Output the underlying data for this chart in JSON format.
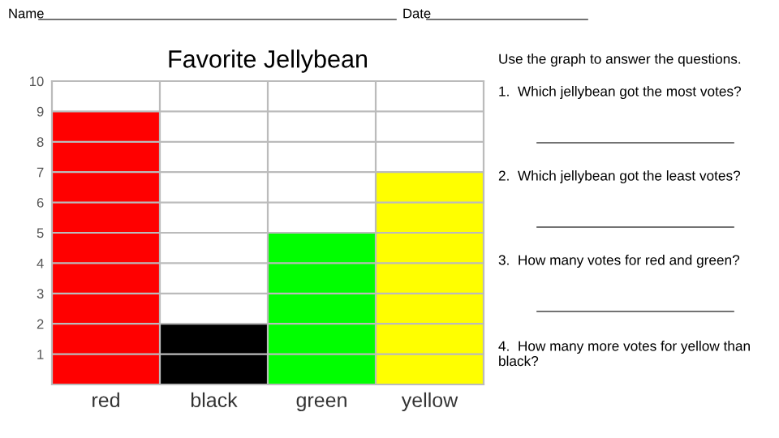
{
  "chart_data": {
    "type": "bar",
    "title": "Favorite Jellybean",
    "categories": [
      "red",
      "black",
      "green",
      "yellow"
    ],
    "values": [
      9,
      2,
      5,
      7
    ],
    "colors": [
      "#ff0000",
      "#000000",
      "#00ff00",
      "#ffff00"
    ],
    "ylim": [
      0,
      10
    ],
    "yticks": [
      1,
      2,
      3,
      4,
      5,
      6,
      7,
      8,
      9,
      10
    ],
    "grid": true,
    "annotations": [
      "Name",
      "Date",
      "Use the graph to answer the questions.",
      "1.  Which jellybean got the most votes?",
      "2.  Which jellybean got the least votes?",
      "3.  How many votes for red and green?",
      "4.  How many more votes for yellow than black?"
    ]
  }
}
